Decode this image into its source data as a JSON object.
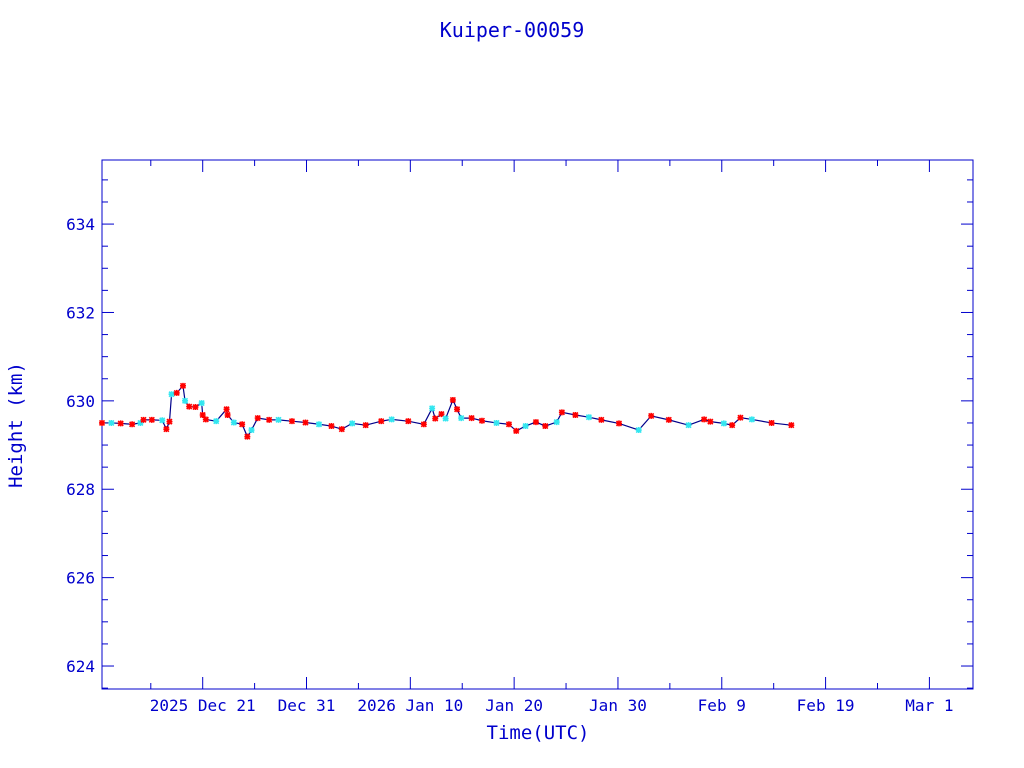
{
  "chart_data": {
    "type": "line",
    "title": "Kuiper-00059",
    "xlabel": "Time(UTC)",
    "ylabel": "Height (km)",
    "x_units": "days since 2025 Dec 21 (UTC)",
    "xlim": [
      -9.7,
      74.2
    ],
    "ylim": [
      623.48,
      635.45
    ],
    "grid": false,
    "x_ticks": [
      {
        "value": 0,
        "label": "2025 Dec 21"
      },
      {
        "value": 10,
        "label": "Dec 31"
      },
      {
        "value": 20,
        "label": "2026 Jan 10"
      },
      {
        "value": 30,
        "label": "Jan 20"
      },
      {
        "value": 40,
        "label": "Jan 30"
      },
      {
        "value": 50,
        "label": "Feb  9"
      },
      {
        "value": 60,
        "label": "Feb 19"
      },
      {
        "value": 70,
        "label": "Mar  1"
      }
    ],
    "x_minor_step": 5,
    "y_ticks": [
      624,
      626,
      628,
      630,
      632,
      634
    ],
    "y_minor_step": 0.5,
    "colors": {
      "axis": "#0000cc",
      "line": "#00008b",
      "marker_a": "#ff0000",
      "marker_b": "#33e6f0"
    },
    "points": [
      [
        -9.7,
        629.5
      ],
      [
        -8.8,
        629.5
      ],
      [
        -7.9,
        629.49
      ],
      [
        -6.8,
        629.47
      ],
      [
        -6.0,
        629.5
      ],
      [
        -5.7,
        629.57
      ],
      [
        -4.9,
        629.57
      ],
      [
        -3.9,
        629.56
      ],
      [
        -3.5,
        629.36
      ],
      [
        -3.2,
        629.53
      ],
      [
        -3.0,
        630.15
      ],
      [
        -2.5,
        630.18
      ],
      [
        -1.9,
        630.34
      ],
      [
        -1.7,
        630.0
      ],
      [
        -1.3,
        629.87
      ],
      [
        -0.7,
        629.86
      ],
      [
        -0.1,
        629.95
      ],
      [
        0.0,
        629.68
      ],
      [
        0.3,
        629.58
      ],
      [
        1.3,
        629.54
      ],
      [
        2.3,
        629.81
      ],
      [
        2.4,
        629.68
      ],
      [
        3.0,
        629.51
      ],
      [
        3.8,
        629.47
      ],
      [
        4.3,
        629.19
      ],
      [
        4.7,
        629.34
      ],
      [
        5.3,
        629.61
      ],
      [
        6.4,
        629.57
      ],
      [
        7.3,
        629.57
      ],
      [
        8.6,
        629.54
      ],
      [
        9.9,
        629.51
      ],
      [
        11.2,
        629.47
      ],
      [
        12.4,
        629.43
      ],
      [
        13.4,
        629.36
      ],
      [
        14.4,
        629.49
      ],
      [
        15.7,
        629.45
      ],
      [
        17.2,
        629.54
      ],
      [
        18.2,
        629.58
      ],
      [
        19.8,
        629.54
      ],
      [
        21.3,
        629.47
      ],
      [
        22.1,
        629.83
      ],
      [
        22.4,
        629.6
      ],
      [
        23.0,
        629.7
      ],
      [
        23.4,
        629.6
      ],
      [
        24.1,
        630.02
      ],
      [
        24.5,
        629.81
      ],
      [
        24.9,
        629.61
      ],
      [
        25.9,
        629.61
      ],
      [
        26.9,
        629.55
      ],
      [
        28.3,
        629.5
      ],
      [
        29.5,
        629.47
      ],
      [
        30.2,
        629.32
      ],
      [
        31.1,
        629.43
      ],
      [
        32.1,
        629.52
      ],
      [
        33.0,
        629.43
      ],
      [
        34.1,
        629.52
      ],
      [
        34.6,
        629.74
      ],
      [
        35.9,
        629.68
      ],
      [
        37.2,
        629.63
      ],
      [
        38.4,
        629.57
      ],
      [
        40.1,
        629.49
      ],
      [
        42.0,
        629.34
      ],
      [
        43.2,
        629.66
      ],
      [
        44.9,
        629.57
      ],
      [
        46.8,
        629.45
      ],
      [
        48.3,
        629.58
      ],
      [
        48.9,
        629.53
      ],
      [
        50.2,
        629.49
      ],
      [
        51.0,
        629.45
      ],
      [
        51.8,
        629.62
      ],
      [
        52.9,
        629.58
      ],
      [
        54.8,
        629.5
      ],
      [
        56.7,
        629.45
      ]
    ]
  }
}
